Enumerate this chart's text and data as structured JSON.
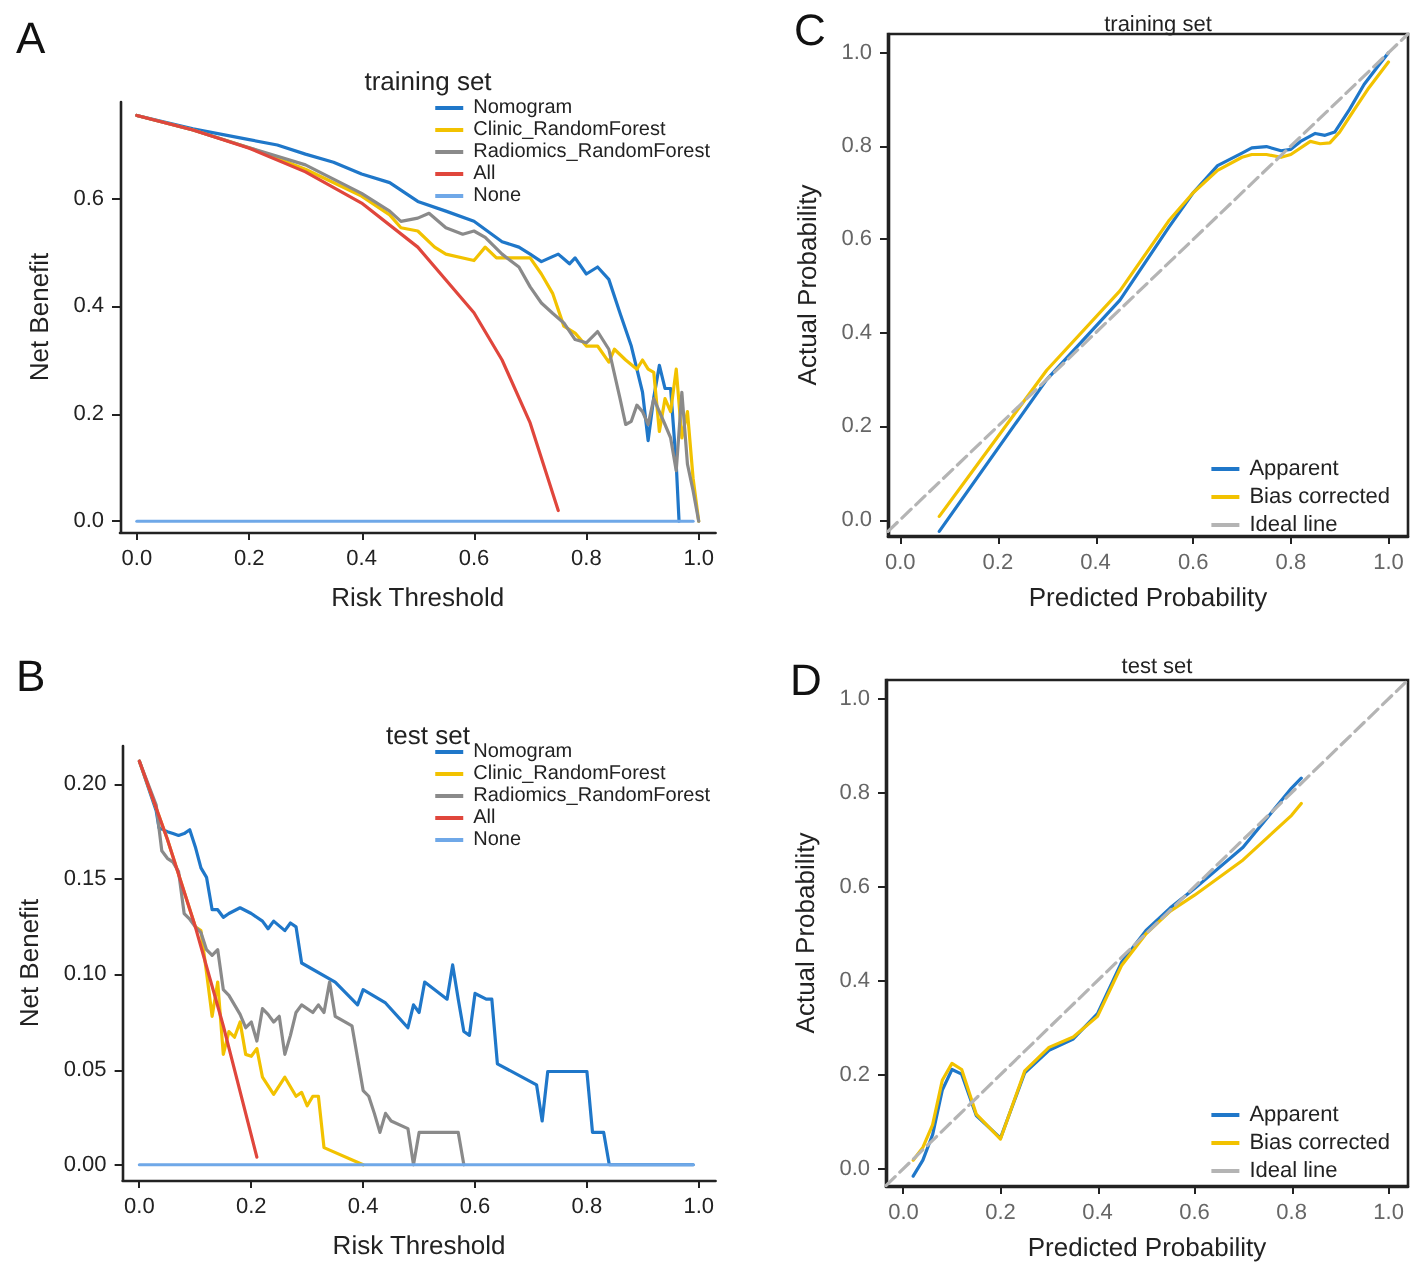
{
  "chart_data": [
    {
      "type": "line",
      "title": "training set",
      "xlabel": "Risk Threshold",
      "ylabel": "Net Benefit",
      "annotations": [
        "A"
      ],
      "legend": "top right",
      "marker": "none",
      "xlim": [
        -0.03,
        1.03
      ],
      "ylim": [
        -0.02,
        0.78
      ],
      "xticks": [
        {
          "value": 0,
          "label": "0.0"
        },
        {
          "value": 0.2,
          "label": "0.2"
        },
        {
          "value": 0.4,
          "label": "0.4"
        },
        {
          "value": 0.6,
          "label": "0.6"
        },
        {
          "value": 0.8,
          "label": "0.8"
        },
        {
          "value": 1,
          "label": "1.0"
        }
      ],
      "yticks": [
        {
          "value": 0,
          "label": "0.0"
        },
        {
          "value": 0.2,
          "label": "0.2"
        },
        {
          "value": 0.4,
          "label": "0.4"
        },
        {
          "value": 0.6,
          "label": "0.6"
        }
      ],
      "series": [
        {
          "name": "Nomogram",
          "color": "#1f77c9",
          "x": [
            0,
            0.1,
            0.2,
            0.25,
            0.3,
            0.35,
            0.4,
            0.45,
            0.5,
            0.55,
            0.6,
            0.65,
            0.68,
            0.7,
            0.72,
            0.75,
            0.77,
            0.78,
            0.8,
            0.82,
            0.84,
            0.86,
            0.88,
            0.9,
            0.91,
            0.92,
            0.93,
            0.94,
            0.95,
            0.96,
            0.965
          ],
          "values": [
            0.755,
            0.73,
            0.71,
            0.7,
            0.683,
            0.668,
            0.646,
            0.63,
            0.595,
            0.577,
            0.558,
            0.52,
            0.51,
            0.497,
            0.483,
            0.497,
            0.479,
            0.49,
            0.46,
            0.473,
            0.45,
            0.387,
            0.326,
            0.24,
            0.15,
            0.23,
            0.29,
            0.247,
            0.247,
            0.106,
            0
          ]
        },
        {
          "name": "Clinic_RandomForest",
          "color": "#f2c200",
          "x": [
            0,
            0.1,
            0.2,
            0.3,
            0.4,
            0.45,
            0.47,
            0.5,
            0.53,
            0.55,
            0.6,
            0.62,
            0.64,
            0.67,
            0.7,
            0.72,
            0.74,
            0.76,
            0.78,
            0.8,
            0.82,
            0.84,
            0.85,
            0.87,
            0.89,
            0.9,
            0.91,
            0.92,
            0.93,
            0.94,
            0.95,
            0.96,
            0.97,
            0.98,
            0.99,
            1.0
          ],
          "values": [
            0.755,
            0.728,
            0.695,
            0.655,
            0.605,
            0.57,
            0.546,
            0.54,
            0.51,
            0.497,
            0.485,
            0.51,
            0.49,
            0.49,
            0.49,
            0.46,
            0.424,
            0.363,
            0.35,
            0.326,
            0.326,
            0.296,
            0.32,
            0.3,
            0.283,
            0.3,
            0.283,
            0.277,
            0.167,
            0.228,
            0.204,
            0.283,
            0.155,
            0.204,
            0.08,
            0
          ]
        },
        {
          "name": "Radiomics_RandomForest",
          "color": "#8a8a8a",
          "x": [
            0,
            0.1,
            0.2,
            0.3,
            0.4,
            0.45,
            0.47,
            0.5,
            0.52,
            0.55,
            0.58,
            0.6,
            0.62,
            0.65,
            0.68,
            0.7,
            0.72,
            0.74,
            0.76,
            0.78,
            0.8,
            0.82,
            0.84,
            0.86,
            0.87,
            0.88,
            0.89,
            0.9,
            0.91,
            0.92,
            0.93,
            0.94,
            0.95,
            0.96,
            0.97,
            0.98,
            0.99,
            1.0
          ],
          "values": [
            0.755,
            0.728,
            0.695,
            0.663,
            0.61,
            0.577,
            0.558,
            0.564,
            0.573,
            0.546,
            0.534,
            0.54,
            0.528,
            0.497,
            0.473,
            0.436,
            0.406,
            0.387,
            0.369,
            0.338,
            0.332,
            0.353,
            0.32,
            0.228,
            0.18,
            0.186,
            0.216,
            0.204,
            0.18,
            0.228,
            0.204,
            0.18,
            0.155,
            0.094,
            0.24,
            0.106,
            0.057,
            0
          ]
        },
        {
          "name": "All",
          "color": "#e0463c",
          "x": [
            0,
            0.1,
            0.2,
            0.3,
            0.4,
            0.5,
            0.6,
            0.65,
            0.7,
            0.75
          ],
          "values": [
            0.755,
            0.728,
            0.694,
            0.65,
            0.592,
            0.51,
            0.388,
            0.3,
            0.183,
            0.02
          ]
        },
        {
          "name": "None",
          "color": "#6fa8e8",
          "x": [
            0,
            0.99
          ],
          "values": [
            0,
            0
          ]
        }
      ]
    },
    {
      "type": "line",
      "title": "training set",
      "xlabel": "Predicted Probability",
      "ylabel": "Actual Probability",
      "annotations": [
        "C"
      ],
      "legend": "bottom right",
      "marker": "none",
      "xlim": [
        -0.025,
        1.04
      ],
      "ylim": [
        -0.035,
        1.04
      ],
      "xticks": [
        {
          "value": 0,
          "label": "0.0"
        },
        {
          "value": 0.2,
          "label": "0.2"
        },
        {
          "value": 0.4,
          "label": "0.4"
        },
        {
          "value": 0.6,
          "label": "0.6"
        },
        {
          "value": 0.8,
          "label": "0.8"
        },
        {
          "value": 1,
          "label": "1.0"
        }
      ],
      "yticks": [
        {
          "value": 0,
          "label": "0.0"
        },
        {
          "value": 0.2,
          "label": "0.2"
        },
        {
          "value": 0.4,
          "label": "0.4"
        },
        {
          "value": 0.6,
          "label": "0.6"
        },
        {
          "value": 0.8,
          "label": "0.8"
        },
        {
          "value": 1,
          "label": "1.0"
        }
      ],
      "series": [
        {
          "name": "Apparent",
          "color": "#1f77c9",
          "x": [
            0.08,
            0.3,
            0.45,
            0.55,
            0.6,
            0.65,
            0.7,
            0.72,
            0.75,
            0.78,
            0.8,
            0.82,
            0.85,
            0.87,
            0.89,
            0.92,
            0.95,
            0.98,
            1.0
          ],
          "values": [
            -0.025,
            0.3,
            0.47,
            0.626,
            0.7,
            0.758,
            0.785,
            0.796,
            0.799,
            0.79,
            0.793,
            0.81,
            0.827,
            0.823,
            0.83,
            0.878,
            0.932,
            0.973,
            1.0
          ]
        },
        {
          "name": "Bias corrected",
          "color": "#f2c200",
          "x": [
            0.08,
            0.3,
            0.45,
            0.55,
            0.6,
            0.65,
            0.7,
            0.72,
            0.75,
            0.78,
            0.8,
            0.84,
            0.86,
            0.88,
            0.9,
            0.93,
            0.96,
            1.0
          ],
          "values": [
            0.007,
            0.32,
            0.49,
            0.64,
            0.7,
            0.748,
            0.776,
            0.782,
            0.782,
            0.776,
            0.782,
            0.81,
            0.805,
            0.807,
            0.83,
            0.878,
            0.925,
            0.98
          ]
        },
        {
          "name": "Ideal line",
          "color": "#b4b4b4",
          "line_style": "dashed",
          "x": [
            -0.025,
            1.04
          ],
          "values": [
            -0.025,
            1.04
          ]
        }
      ]
    },
    {
      "type": "line",
      "title": "test set",
      "xlabel": "Risk Threshold",
      "ylabel": "Net Benefit",
      "annotations": [
        "B"
      ],
      "legend": "top right",
      "marker": "none",
      "xlim": [
        -0.03,
        1.03
      ],
      "ylim": [
        -0.008,
        0.22
      ],
      "xticks": [
        {
          "value": 0,
          "label": "0.0"
        },
        {
          "value": 0.2,
          "label": "0.2"
        },
        {
          "value": 0.4,
          "label": "0.4"
        },
        {
          "value": 0.6,
          "label": "0.6"
        },
        {
          "value": 0.8,
          "label": "0.8"
        },
        {
          "value": 1,
          "label": "1.0"
        }
      ],
      "yticks": [
        {
          "value": 0,
          "label": "0.00"
        },
        {
          "value": 0.05,
          "label": "0.05"
        },
        {
          "value": 0.1,
          "label": "0.10"
        },
        {
          "value": 0.15,
          "label": "0.15"
        },
        {
          "value": 0.2,
          "label": "0.20"
        }
      ],
      "series": [
        {
          "name": "Nomogram",
          "color": "#1f77c9",
          "x": [
            0,
            0.03,
            0.035,
            0.05,
            0.06,
            0.07,
            0.08,
            0.09,
            0.1,
            0.11,
            0.12,
            0.13,
            0.14,
            0.15,
            0.16,
            0.18,
            0.2,
            0.22,
            0.23,
            0.24,
            0.26,
            0.27,
            0.28,
            0.29,
            0.35,
            0.39,
            0.4,
            0.44,
            0.48,
            0.49,
            0.5,
            0.51,
            0.55,
            0.56,
            0.57,
            0.58,
            0.59,
            0.6,
            0.62,
            0.63,
            0.64,
            0.71,
            0.72,
            0.73,
            0.8,
            0.81,
            0.83,
            0.84,
            0.99
          ],
          "values": [
            0.212,
            0.186,
            0.177,
            0.175,
            0.174,
            0.173,
            0.174,
            0.176,
            0.167,
            0.156,
            0.151,
            0.134,
            0.134,
            0.13,
            0.132,
            0.135,
            0.132,
            0.128,
            0.124,
            0.128,
            0.123,
            0.127,
            0.125,
            0.106,
            0.096,
            0.084,
            0.092,
            0.085,
            0.072,
            0.084,
            0.08,
            0.096,
            0.087,
            0.105,
            0.087,
            0.07,
            0.068,
            0.09,
            0.087,
            0.087,
            0.053,
            0.042,
            0.023,
            0.049,
            0.049,
            0.017,
            0.017,
            0,
            0
          ]
        },
        {
          "name": "Clinic_RandomForest",
          "color": "#f2c200",
          "x": [
            0,
            0.05,
            0.1,
            0.11,
            0.12,
            0.13,
            0.14,
            0.15,
            0.16,
            0.17,
            0.18,
            0.19,
            0.2,
            0.21,
            0.22,
            0.24,
            0.26,
            0.28,
            0.29,
            0.3,
            0.31,
            0.32,
            0.33,
            0.4
          ],
          "values": [
            0.212,
            0.171,
            0.125,
            0.123,
            0.101,
            0.078,
            0.096,
            0.058,
            0.07,
            0.067,
            0.075,
            0.058,
            0.057,
            0.061,
            0.046,
            0.037,
            0.046,
            0.036,
            0.038,
            0.031,
            0.036,
            0.036,
            0.009,
            0
          ]
        },
        {
          "name": "Radiomics_RandomForest",
          "color": "#8a8a8a",
          "x": [
            0,
            0.03,
            0.04,
            0.05,
            0.06,
            0.07,
            0.08,
            0.09,
            0.1,
            0.11,
            0.12,
            0.13,
            0.14,
            0.15,
            0.16,
            0.18,
            0.19,
            0.2,
            0.21,
            0.22,
            0.23,
            0.24,
            0.25,
            0.26,
            0.27,
            0.28,
            0.29,
            0.31,
            0.32,
            0.33,
            0.34,
            0.35,
            0.38,
            0.4,
            0.41,
            0.42,
            0.43,
            0.44,
            0.45,
            0.48,
            0.49,
            0.5,
            0.57,
            0.58
          ],
          "values": [
            0.212,
            0.189,
            0.165,
            0.161,
            0.159,
            0.154,
            0.132,
            0.129,
            0.125,
            0.122,
            0.113,
            0.11,
            0.113,
            0.092,
            0.089,
            0.079,
            0.072,
            0.075,
            0.065,
            0.082,
            0.079,
            0.075,
            0.078,
            0.058,
            0.068,
            0.08,
            0.084,
            0.08,
            0.084,
            0.08,
            0.096,
            0.078,
            0.073,
            0.039,
            0.036,
            0.027,
            0.017,
            0.027,
            0.023,
            0.019,
            0,
            0.017,
            0.017,
            0
          ]
        },
        {
          "name": "All",
          "color": "#e0463c",
          "x": [
            0,
            0.05,
            0.1,
            0.15,
            0.21
          ],
          "values": [
            0.212,
            0.171,
            0.125,
            0.073,
            0.004
          ]
        },
        {
          "name": "None",
          "color": "#6fa8e8",
          "x": [
            0,
            0.99
          ],
          "values": [
            0,
            0
          ]
        }
      ]
    },
    {
      "type": "line",
      "title": "test set",
      "xlabel": "Predicted Probability",
      "ylabel": "Actual Probability",
      "annotations": [
        "D"
      ],
      "legend": "bottom right",
      "marker": "none",
      "xlim": [
        -0.036,
        1.04
      ],
      "ylim": [
        -0.037,
        1.04
      ],
      "xticks": [
        {
          "value": 0,
          "label": "0.0"
        },
        {
          "value": 0.2,
          "label": "0.2"
        },
        {
          "value": 0.4,
          "label": "0.4"
        },
        {
          "value": 0.6,
          "label": "0.6"
        },
        {
          "value": 0.8,
          "label": "0.8"
        },
        {
          "value": 1,
          "label": "1.0"
        }
      ],
      "yticks": [
        {
          "value": 0,
          "label": "0.0"
        },
        {
          "value": 0.2,
          "label": "0.2"
        },
        {
          "value": 0.4,
          "label": "0.4"
        },
        {
          "value": 0.6,
          "label": "0.6"
        },
        {
          "value": 0.8,
          "label": "0.8"
        },
        {
          "value": 1,
          "label": "1.0"
        }
      ],
      "series": [
        {
          "name": "Apparent",
          "color": "#1f77c9",
          "x": [
            0.02,
            0.04,
            0.06,
            0.08,
            0.1,
            0.12,
            0.15,
            0.2,
            0.25,
            0.3,
            0.35,
            0.4,
            0.45,
            0.5,
            0.55,
            0.6,
            0.7,
            0.8,
            0.82
          ],
          "values": [
            -0.016,
            0.018,
            0.072,
            0.167,
            0.211,
            0.201,
            0.113,
            0.065,
            0.204,
            0.252,
            0.276,
            0.33,
            0.44,
            0.507,
            0.555,
            0.596,
            0.684,
            0.81,
            0.831
          ]
        },
        {
          "name": "Bias corrected",
          "color": "#f2c200",
          "x": [
            0.02,
            0.04,
            0.06,
            0.08,
            0.1,
            0.12,
            0.15,
            0.2,
            0.25,
            0.3,
            0.35,
            0.4,
            0.45,
            0.5,
            0.55,
            0.6,
            0.7,
            0.8,
            0.82
          ],
          "values": [
            0.018,
            0.045,
            0.093,
            0.188,
            0.224,
            0.211,
            0.116,
            0.063,
            0.208,
            0.258,
            0.28,
            0.324,
            0.433,
            0.5,
            0.548,
            0.582,
            0.657,
            0.752,
            0.777
          ]
        },
        {
          "name": "Ideal line",
          "color": "#b4b4b4",
          "line_style": "dashed",
          "x": [
            -0.036,
            1.04
          ],
          "values": [
            -0.036,
            1.04
          ]
        }
      ]
    }
  ]
}
